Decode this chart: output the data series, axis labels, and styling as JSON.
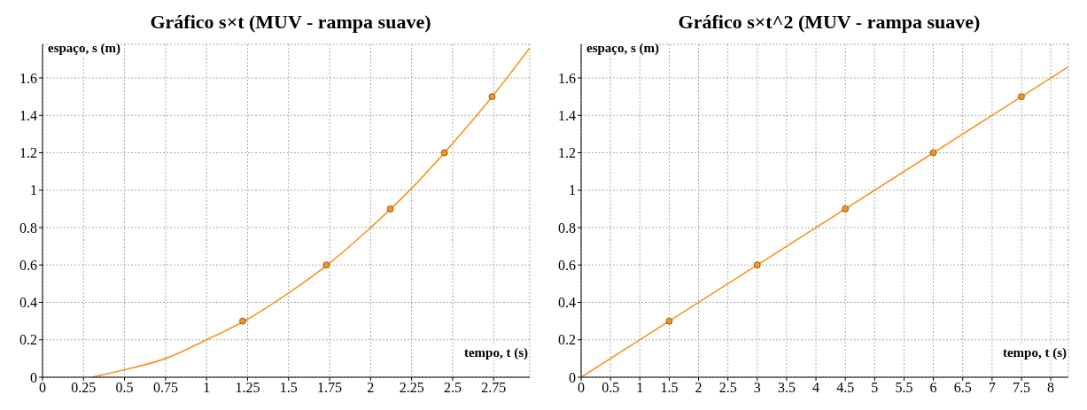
{
  "chart_data": [
    {
      "type": "scatter",
      "title": "Gráfico s×t (MUV - rampa suave)",
      "xlabel": "tempo, t (s)",
      "ylabel": "espaço, s (m)",
      "xlim": [
        0,
        2.97
      ],
      "ylim": [
        0,
        1.78
      ],
      "xticks": [
        0,
        0.25,
        0.5,
        0.75,
        1,
        1.25,
        1.5,
        1.75,
        2,
        2.25,
        2.5,
        2.75
      ],
      "yticks": [
        0,
        0.2,
        0.4,
        0.6,
        0.8,
        1,
        1.2,
        1.4,
        1.6
      ],
      "grid": true,
      "series": [
        {
          "type": "line",
          "color": "#f7941d",
          "marker": "none",
          "line_style": "solid",
          "x": [
            0.3,
            0.5,
            0.75,
            1,
            1.25,
            1.5,
            1.75,
            2,
            2.25,
            2.5,
            2.75,
            2.97
          ],
          "values": [
            0,
            0.04,
            0.1,
            0.2,
            0.31,
            0.45,
            0.61,
            0.8,
            1.01,
            1.25,
            1.51,
            1.76
          ]
        },
        {
          "color": "#f7941d",
          "marker": "circle",
          "x": [
            1.22,
            1.73,
            2.12,
            2.45,
            2.74
          ],
          "values": [
            0.3,
            0.6,
            0.9,
            1.2,
            1.5
          ]
        }
      ]
    },
    {
      "type": "scatter",
      "title": "Gráfico s×t^2 (MUV - rampa suave)",
      "xlabel": "tempo, t (s)",
      "ylabel": "espaço, s (m)",
      "xlim": [
        0,
        8.3
      ],
      "ylim": [
        0,
        1.78
      ],
      "xticks": [
        0,
        0.5,
        1,
        1.5,
        2,
        2.5,
        3,
        3.5,
        4,
        4.5,
        5,
        5.5,
        6,
        6.5,
        7,
        7.5,
        8
      ],
      "yticks": [
        0,
        0.2,
        0.4,
        0.6,
        0.8,
        1,
        1.2,
        1.4,
        1.6
      ],
      "grid": true,
      "series": [
        {
          "type": "line",
          "color": "#f7941d",
          "marker": "none",
          "line_style": "solid",
          "x": [
            0,
            8.3
          ],
          "values": [
            0,
            1.66
          ]
        },
        {
          "color": "#f7941d",
          "marker": "circle",
          "x": [
            1.5,
            3,
            4.5,
            6,
            7.5
          ],
          "values": [
            0.3,
            0.6,
            0.9,
            1.2,
            1.5
          ]
        }
      ]
    }
  ]
}
